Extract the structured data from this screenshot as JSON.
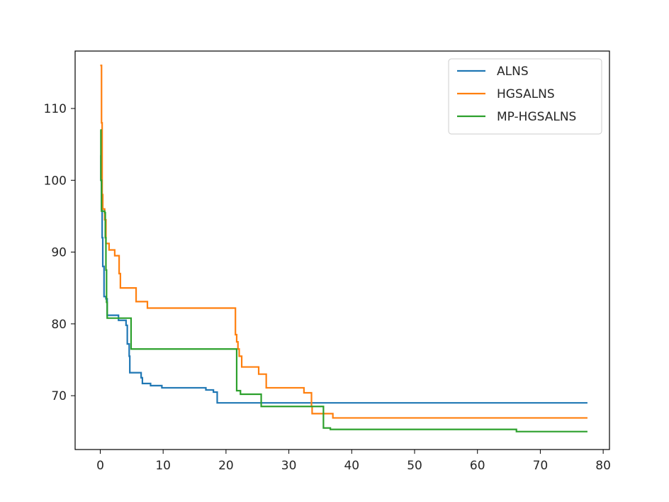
{
  "chart_data": {
    "type": "line",
    "title": "",
    "xlabel": "",
    "ylabel": "",
    "xlim": [
      -4,
      81
    ],
    "ylim": [
      62.5,
      118
    ],
    "xticks": [
      0,
      10,
      20,
      30,
      40,
      50,
      60,
      70,
      80
    ],
    "yticks": [
      70,
      80,
      90,
      100,
      110
    ],
    "grid": false,
    "legend_position": "top-right",
    "step": "post",
    "series": [
      {
        "name": "ALNS",
        "color": "#1f77b4",
        "points": [
          [
            0,
            103.5
          ],
          [
            0.1,
            100
          ],
          [
            0.2,
            96
          ],
          [
            0.3,
            92
          ],
          [
            0.4,
            88
          ],
          [
            0.6,
            83.8
          ],
          [
            0.9,
            83.5
          ],
          [
            1.1,
            81.2
          ],
          [
            2.8,
            81.2
          ],
          [
            2.9,
            80.5
          ],
          [
            3.9,
            80.5
          ],
          [
            4.1,
            79.8
          ],
          [
            4.3,
            77.2
          ],
          [
            4.6,
            75.5
          ],
          [
            4.7,
            73.2
          ],
          [
            6.2,
            73.2
          ],
          [
            6.5,
            72.5
          ],
          [
            6.7,
            71.7
          ],
          [
            7.8,
            71.7
          ],
          [
            8.0,
            71.4
          ],
          [
            9.5,
            71.4
          ],
          [
            9.8,
            71.1
          ],
          [
            16.6,
            71.1
          ],
          [
            16.8,
            70.8
          ],
          [
            17.8,
            70.8
          ],
          [
            18.0,
            70.5
          ],
          [
            18.4,
            70.5
          ],
          [
            18.6,
            69.0
          ],
          [
            77.5,
            69.0
          ]
        ]
      },
      {
        "name": "HGSALNS",
        "color": "#ff7f0e",
        "points": [
          [
            0,
            116
          ],
          [
            0.2,
            108
          ],
          [
            0.3,
            98
          ],
          [
            0.4,
            96
          ],
          [
            0.7,
            94.5
          ],
          [
            0.9,
            91.2
          ],
          [
            1.2,
            91.2
          ],
          [
            1.4,
            90.3
          ],
          [
            2.1,
            90.3
          ],
          [
            2.3,
            89.5
          ],
          [
            2.9,
            89.5
          ],
          [
            3.0,
            87
          ],
          [
            3.2,
            85
          ],
          [
            5.5,
            85
          ],
          [
            5.7,
            83.1
          ],
          [
            7.3,
            83.1
          ],
          [
            7.5,
            82.2
          ],
          [
            21.5,
            78.5
          ],
          [
            21.7,
            77.5
          ],
          [
            21.9,
            76.5
          ],
          [
            22.1,
            75.5
          ],
          [
            22.5,
            74
          ],
          [
            25.0,
            74
          ],
          [
            25.2,
            73
          ],
          [
            26.2,
            73
          ],
          [
            26.4,
            71.1
          ],
          [
            32.2,
            71.1
          ],
          [
            32.4,
            70.4
          ],
          [
            33.4,
            70.4
          ],
          [
            33.6,
            68.5
          ],
          [
            33.7,
            67.5
          ],
          [
            36.8,
            67.5
          ],
          [
            37.0,
            66.9
          ],
          [
            77.5,
            66.9
          ]
        ]
      },
      {
        "name": "MP-HGSALNS",
        "color": "#2ca02c",
        "points": [
          [
            0,
            107
          ],
          [
            0.1,
            100
          ],
          [
            0.2,
            95.7
          ],
          [
            0.5,
            95.7
          ],
          [
            0.7,
            95.5
          ],
          [
            0.8,
            92
          ],
          [
            0.9,
            87.5
          ],
          [
            1.0,
            83
          ],
          [
            1.1,
            80.8
          ],
          [
            3.7,
            80.8
          ],
          [
            3.9,
            80.8
          ],
          [
            4.7,
            80.8
          ],
          [
            4.9,
            76.5
          ],
          [
            21.4,
            76.5
          ],
          [
            21.5,
            76.5
          ],
          [
            21.7,
            70.7
          ],
          [
            22.0,
            70.7
          ],
          [
            22.3,
            70.2
          ],
          [
            25.4,
            70.2
          ],
          [
            25.6,
            68.5
          ],
          [
            35.3,
            68.5
          ],
          [
            35.5,
            65.5
          ],
          [
            36.4,
            65.5
          ],
          [
            36.6,
            65.3
          ],
          [
            66.0,
            65.3
          ],
          [
            66.2,
            65.0
          ],
          [
            77.5,
            65.0
          ]
        ]
      }
    ]
  }
}
